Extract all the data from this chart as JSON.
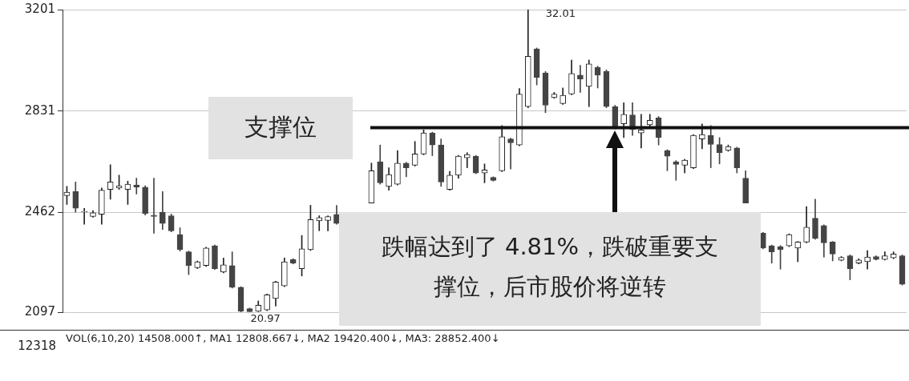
{
  "chart_data": [
    {
      "type": "candlestick",
      "categories": [
        null,
        null,
        null,
        null,
        null,
        null,
        null,
        null,
        null,
        null,
        null,
        null,
        null,
        null,
        null,
        null,
        null,
        null,
        null,
        null,
        null,
        null,
        null,
        null,
        null,
        null,
        null,
        null,
        null,
        null,
        null,
        null,
        null,
        null,
        null,
        null,
        null,
        null,
        null,
        null,
        null,
        null,
        null,
        null,
        null,
        null,
        null,
        null,
        null,
        null,
        null,
        null,
        null,
        null,
        null,
        null,
        null,
        null,
        null,
        null,
        null,
        null,
        null,
        null,
        null,
        null,
        null,
        null,
        null,
        null,
        null,
        null,
        null,
        null,
        null,
        null,
        null,
        null,
        null,
        null,
        null,
        null,
        null,
        null,
        null,
        null,
        null,
        null,
        null,
        null,
        null,
        null,
        null,
        null,
        null,
        null,
        null
      ],
      "ohlc": [
        [
          2522,
          2556,
          2490,
          2535
        ],
        [
          2537,
          2572,
          2462,
          2476
        ],
        [
          2462,
          2476,
          2418,
          2465
        ],
        [
          2446,
          2468,
          2443,
          2460
        ],
        [
          2454,
          2550,
          2418,
          2542
        ],
        [
          2545,
          2635,
          2509,
          2572
        ],
        [
          2550,
          2597,
          2545,
          2558
        ],
        [
          2545,
          2575,
          2490,
          2564
        ],
        [
          2561,
          2586,
          2528,
          2553
        ],
        [
          2553,
          2558,
          2451,
          2457
        ],
        [
          2451,
          2586,
          2385,
          2446
        ],
        [
          2462,
          2537,
          2399,
          2421
        ],
        [
          2449,
          2455,
          2390,
          2394
        ],
        [
          2380,
          2405,
          2320,
          2325
        ],
        [
          2317,
          2320,
          2234,
          2267
        ],
        [
          2259,
          2284,
          2256,
          2281
        ],
        [
          2267,
          2334,
          2264,
          2331
        ],
        [
          2339,
          2342,
          2253,
          2256
        ],
        [
          2243,
          2295,
          2240,
          2270
        ],
        [
          2267,
          2317,
          2185,
          2188
        ],
        [
          2188,
          2190,
          2097,
          2100
        ],
        [
          2110,
          2112,
          2099,
          2099
        ],
        [
          2100,
          2138,
          2099,
          2122
        ],
        [
          2105,
          2163,
          2102,
          2160
        ],
        [
          2147,
          2210,
          2119,
          2207
        ],
        [
          2193,
          2295,
          2190,
          2281
        ],
        [
          2289,
          2292,
          2273,
          2276
        ],
        [
          2256,
          2377,
          2229,
          2328
        ],
        [
          2325,
          2487,
          2322,
          2435
        ],
        [
          2430,
          2449,
          2394,
          2442
        ],
        [
          2432,
          2449,
          2394,
          2446
        ],
        [
          2454,
          2487,
          2418,
          2421
        ],
        null,
        null,
        null,
        [
          2495,
          2641,
          2495,
          2613
        ],
        [
          2646,
          2707,
          2564,
          2569
        ],
        [
          2556,
          2624,
          2542,
          2599
        ],
        [
          2564,
          2687,
          2561,
          2641
        ],
        [
          2641,
          2644,
          2591,
          2624
        ],
        [
          2633,
          2720,
          2630,
          2674
        ],
        [
          2674,
          2762,
          2671,
          2751
        ],
        [
          2751,
          2754,
          2668,
          2707
        ],
        [
          2707,
          2729,
          2556,
          2572
        ],
        [
          2545,
          2611,
          2542,
          2597
        ],
        [
          2597,
          2669,
          2586,
          2666
        ],
        [
          2660,
          2679,
          2624,
          2672
        ],
        [
          2666,
          2669,
          2602,
          2605
        ],
        [
          2605,
          2638,
          2569,
          2616
        ],
        [
          2589,
          2591,
          2575,
          2578
        ],
        [
          2613,
          2778,
          2610,
          2737
        ],
        [
          2729,
          2732,
          2619,
          2715
        ],
        [
          2707,
          2913,
          2704,
          2893
        ],
        [
          2847,
          3201,
          2843,
          3031
        ],
        [
          3058,
          3061,
          2926,
          2954
        ],
        [
          2970,
          2975,
          2825,
          2852
        ],
        [
          2880,
          2899,
          2877,
          2893
        ],
        [
          2858,
          2915,
          2855,
          2888
        ],
        [
          2893,
          3017,
          2890,
          2968
        ],
        [
          2962,
          2998,
          2899,
          2948
        ],
        [
          2921,
          3017,
          2847,
          3003
        ],
        [
          2990,
          2995,
          2915,
          2962
        ],
        [
          2976,
          2981,
          2843,
          2847
        ],
        [
          2847,
          2852,
          2765,
          2770
        ],
        [
          2784,
          2861,
          2734,
          2819
        ],
        [
          2817,
          2861,
          2742,
          2764
        ],
        [
          2751,
          2819,
          2696,
          2762
        ],
        [
          2781,
          2819,
          2772,
          2797
        ],
        [
          2806,
          2811,
          2707,
          2734
        ],
        [
          2687,
          2690,
          2613,
          2666
        ],
        [
          2646,
          2650,
          2578,
          2636
        ],
        [
          2633,
          2655,
          2605,
          2652
        ],
        [
          2624,
          2745,
          2621,
          2742
        ],
        [
          2729,
          2784,
          2693,
          2745
        ],
        [
          2742,
          2778,
          2624,
          2709
        ],
        [
          2709,
          2734,
          2638,
          2679
        ],
        [
          2687,
          2707,
          2684,
          2701
        ],
        [
          2696,
          2699,
          2605,
          2624
        ],
        [
          2586,
          2613,
          2495,
          2495
        ],
        null,
        [
          2385,
          2388,
          2328,
          2331
        ],
        [
          2339,
          2342,
          2276,
          2317
        ],
        [
          2336,
          2340,
          2254,
          2325
        ],
        [
          2339,
          2383,
          2336,
          2380
        ],
        [
          2331,
          2355,
          2281,
          2353
        ],
        [
          2353,
          2482,
          2350,
          2407
        ],
        [
          2440,
          2509,
          2363,
          2366
        ],
        [
          2413,
          2416,
          2298,
          2350
        ],
        [
          2353,
          2355,
          2284,
          2309
        ],
        [
          2286,
          2300,
          2284,
          2297
        ],
        [
          2303,
          2306,
          2215,
          2256
        ],
        [
          2276,
          2292,
          2273,
          2287
        ],
        [
          2281,
          2322,
          2254,
          2298
        ],
        [
          2300,
          2303,
          2287,
          2289
        ],
        [
          2289,
          2317,
          2287,
          2303
        ],
        [
          2295,
          2317,
          2292,
          2309
        ],
        [
          2303,
          2306,
          2196,
          2199
        ]
      ],
      "ylim": [
        2097,
        3201
      ],
      "yticks": [
        3201,
        2831,
        2462,
        2097
      ],
      "grid": "y",
      "tick_labels": "y",
      "ref_lines": [
        {
          "axis": "y",
          "value": 2770,
          "label": "支撑位"
        }
      ],
      "annotations": [
        "32.01",
        "20.97",
        "跌幅达到了 4.81%，跌破重要支撑位，后市股价将逆转"
      ]
    },
    {
      "type": "other",
      "title": "VOL(6,10,20) 14508.000↑, MA1 12808.667↓, MA2 19420.400↓, MA3: 28852.400↓",
      "annotations": [
        "12318"
      ]
    }
  ]
}
